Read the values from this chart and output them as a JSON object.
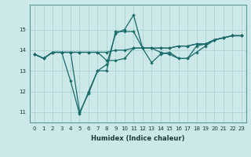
{
  "xlabel": "Humidex (Indice chaleur)",
  "ylabel": "",
  "bg_color": "#cce8e8",
  "line_color": "#1a6b6b",
  "grid_color": "#aad4d4",
  "xlim": [
    -0.5,
    23.5
  ],
  "ylim": [
    10.5,
    16.2
  ],
  "yticks": [
    11,
    12,
    13,
    14,
    15
  ],
  "xticks": [
    0,
    1,
    2,
    3,
    4,
    5,
    6,
    7,
    8,
    9,
    10,
    11,
    12,
    13,
    14,
    15,
    16,
    17,
    18,
    19,
    20,
    21,
    22,
    23
  ],
  "series": [
    [
      13.8,
      13.6,
      13.9,
      13.9,
      13.9,
      13.9,
      13.9,
      13.9,
      13.9,
      14.0,
      14.0,
      14.1,
      14.1,
      14.1,
      14.1,
      14.1,
      14.2,
      14.2,
      14.3,
      14.3,
      14.5,
      14.6,
      14.7,
      14.7
    ],
    [
      13.8,
      13.6,
      13.9,
      13.9,
      13.9,
      11.0,
      11.9,
      13.0,
      13.3,
      14.8,
      15.0,
      15.7,
      14.1,
      13.4,
      13.8,
      13.9,
      13.6,
      13.6,
      13.9,
      14.2,
      14.5,
      14.6,
      14.7,
      14.7
    ],
    [
      13.8,
      13.6,
      13.9,
      13.9,
      12.5,
      10.9,
      12.0,
      13.0,
      13.0,
      14.9,
      14.9,
      14.9,
      14.1,
      14.1,
      13.9,
      13.8,
      13.6,
      13.6,
      14.2,
      14.3,
      14.5,
      14.6,
      14.7,
      14.7
    ],
    [
      13.8,
      13.6,
      13.9,
      13.9,
      13.9,
      13.9,
      13.9,
      13.9,
      13.5,
      13.5,
      13.6,
      14.1,
      14.1,
      14.1,
      14.1,
      14.1,
      14.2,
      14.2,
      14.3,
      14.3,
      14.5,
      14.6,
      14.7,
      14.7
    ]
  ]
}
